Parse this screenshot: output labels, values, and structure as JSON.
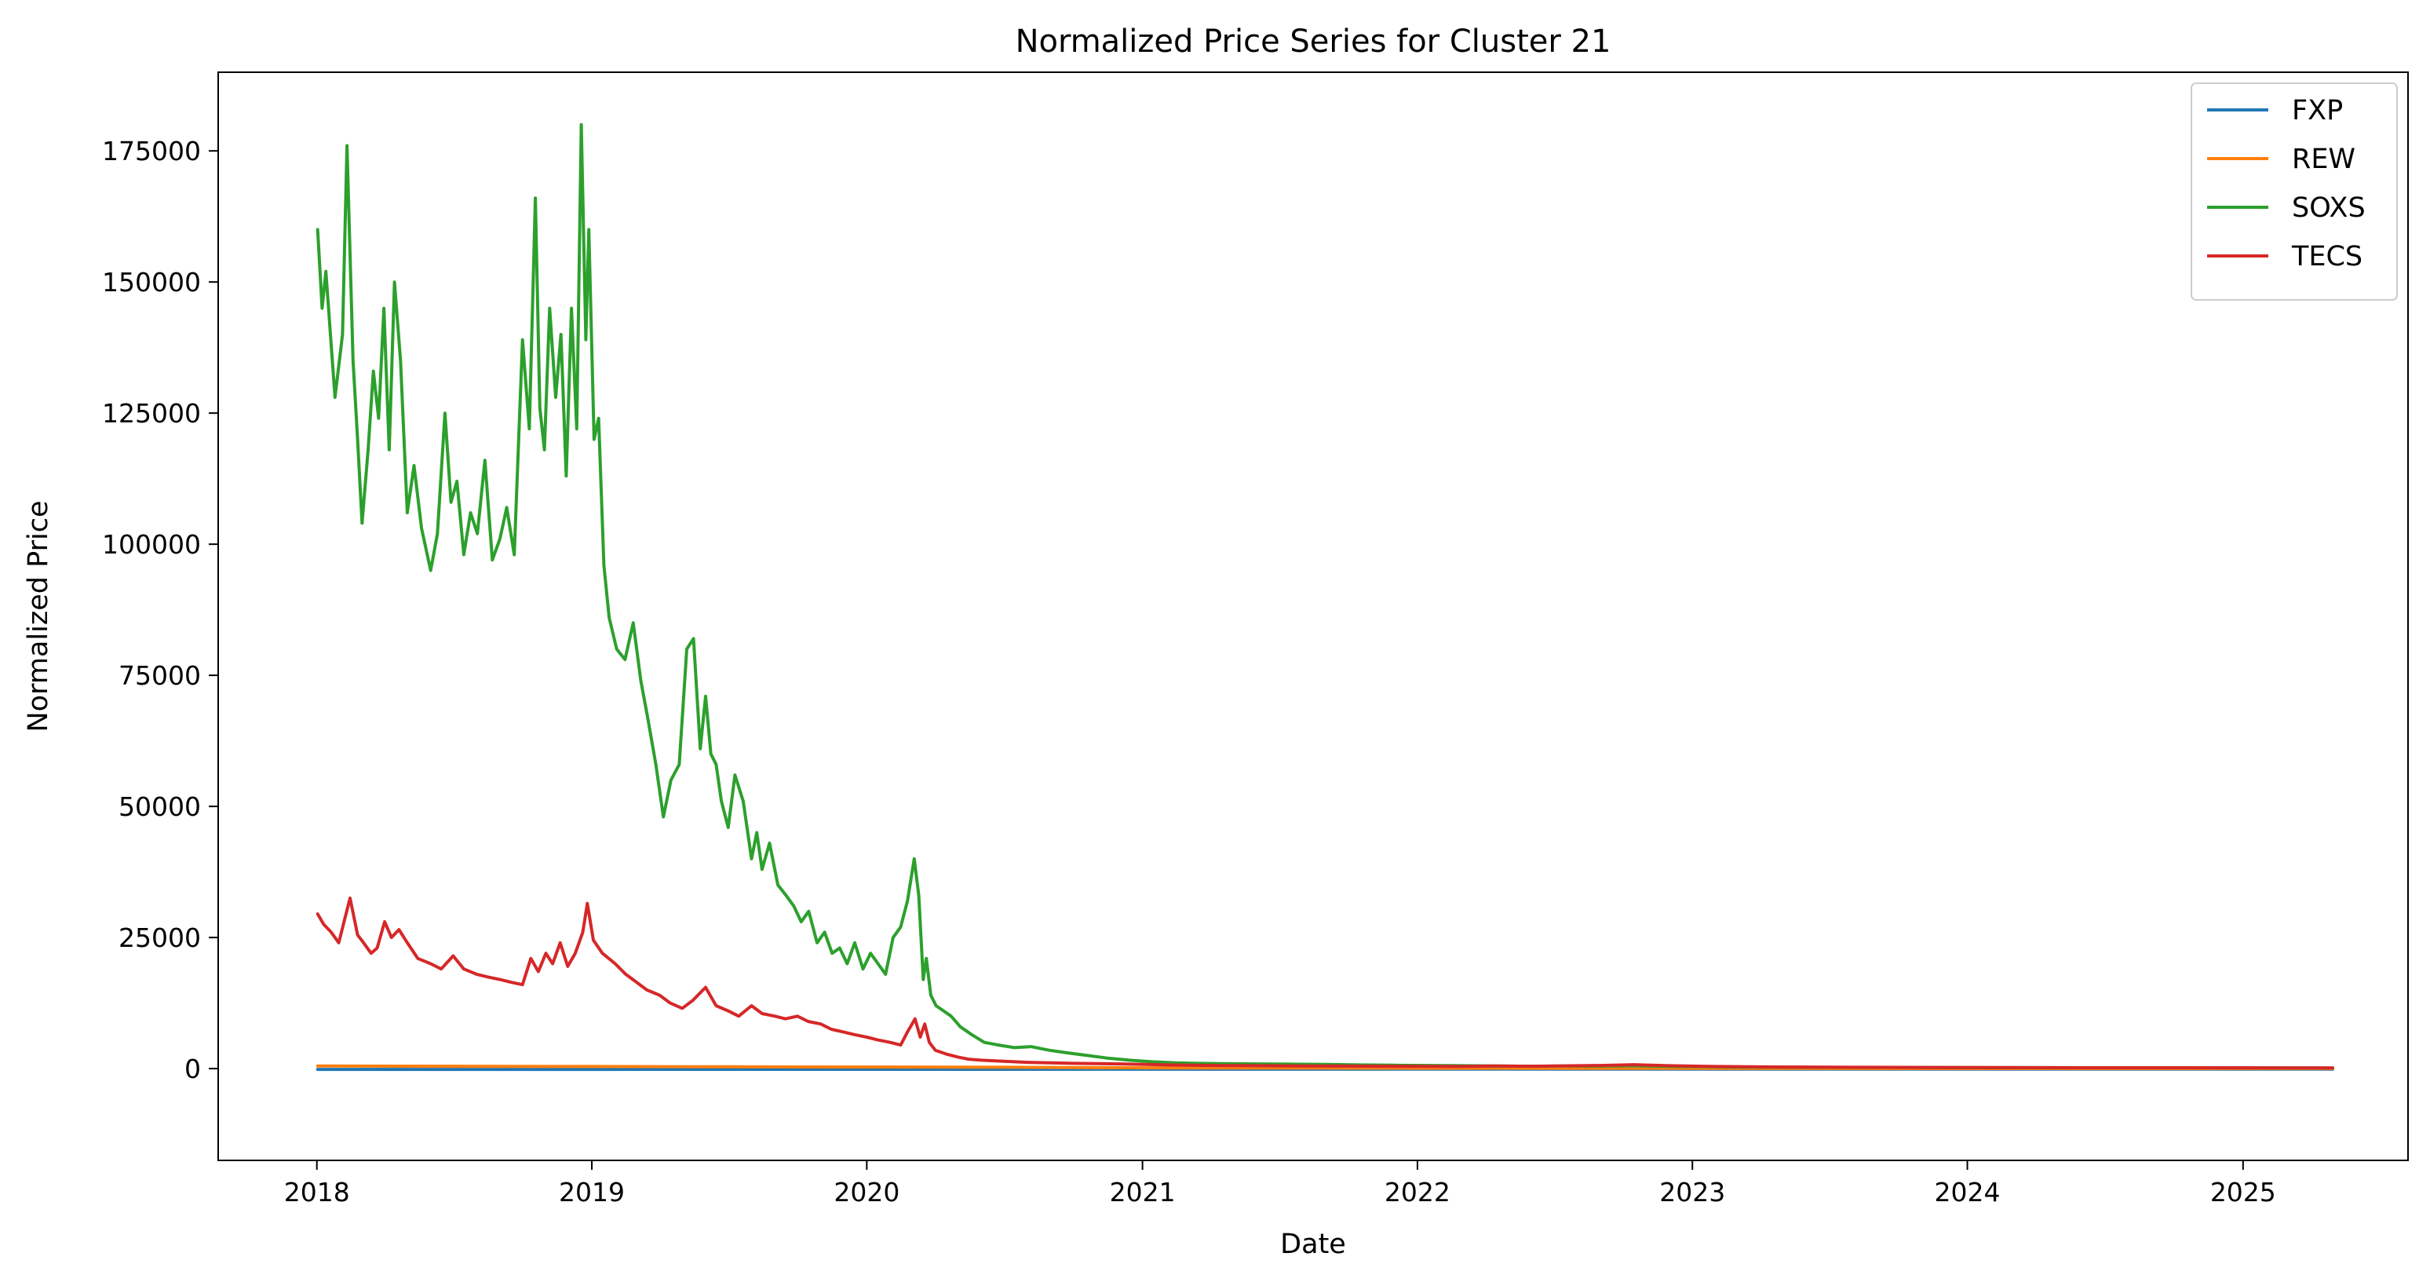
{
  "chart_data": {
    "type": "line",
    "title": "Normalized Price Series for Cluster 21",
    "xlabel": "Date",
    "ylabel": "Normalized Price",
    "xlim": [
      "2017-08-23",
      "2025-08-08"
    ],
    "ylim": [
      -17500,
      190000
    ],
    "x_ticks": [
      "2018",
      "2019",
      "2020",
      "2021",
      "2022",
      "2023",
      "2024",
      "2025"
    ],
    "y_ticks": [
      0,
      25000,
      50000,
      75000,
      100000,
      125000,
      150000,
      175000
    ],
    "grid": false,
    "legend_position": "upper right",
    "series": [
      {
        "name": "FXP",
        "color": "#1f77b4",
        "x": [
          "2018-01-02",
          "2019-01-02",
          "2020-01-02",
          "2021-01-04",
          "2022-01-03",
          "2023-01-03",
          "2024-01-02",
          "2025-04-30"
        ],
        "y": [
          -150,
          -150,
          -130,
          -120,
          -110,
          -110,
          -100,
          -100
        ]
      },
      {
        "name": "REW",
        "color": "#ff7f0e",
        "x": [
          "2018-01-02",
          "2018-07-02",
          "2019-01-02",
          "2019-07-01",
          "2020-01-02",
          "2020-07-01",
          "2021-01-04",
          "2022-01-03",
          "2023-01-03",
          "2024-01-02",
          "2025-04-30"
        ],
        "y": [
          500,
          450,
          400,
          350,
          300,
          250,
          150,
          80,
          40,
          20,
          10
        ]
      },
      {
        "name": "SOXS",
        "color": "#2ca02c",
        "x": [
          "2018-01-02",
          "2018-01-08",
          "2018-01-13",
          "2018-01-25",
          "2018-02-04",
          "2018-02-10",
          "2018-02-18",
          "2018-02-24",
          "2018-03-02",
          "2018-03-10",
          "2018-03-17",
          "2018-03-24",
          "2018-03-31",
          "2018-04-07",
          "2018-04-14",
          "2018-04-22",
          "2018-05-01",
          "2018-05-10",
          "2018-05-20",
          "2018-06-01",
          "2018-06-10",
          "2018-06-20",
          "2018-06-28",
          "2018-07-06",
          "2018-07-15",
          "2018-07-24",
          "2018-08-02",
          "2018-08-12",
          "2018-08-22",
          "2018-09-01",
          "2018-09-10",
          "2018-09-20",
          "2018-10-01",
          "2018-10-10",
          "2018-10-18",
          "2018-10-24",
          "2018-10-30",
          "2018-11-06",
          "2018-11-14",
          "2018-11-21",
          "2018-11-28",
          "2018-12-05",
          "2018-12-12",
          "2018-12-18",
          "2018-12-24",
          "2018-12-28",
          "2019-01-04",
          "2019-01-10",
          "2019-01-17",
          "2019-01-24",
          "2019-02-03",
          "2019-02-14",
          "2019-02-25",
          "2019-03-07",
          "2019-03-16",
          "2019-03-27",
          "2019-04-06",
          "2019-04-16",
          "2019-04-27",
          "2019-05-07",
          "2019-05-16",
          "2019-05-25",
          "2019-06-01",
          "2019-06-08",
          "2019-06-15",
          "2019-06-22",
          "2019-07-01",
          "2019-07-10",
          "2019-07-21",
          "2019-08-01",
          "2019-08-08",
          "2019-08-15",
          "2019-08-25",
          "2019-09-05",
          "2019-09-16",
          "2019-09-26",
          "2019-10-06",
          "2019-10-16",
          "2019-10-27",
          "2019-11-06",
          "2019-11-16",
          "2019-11-26",
          "2019-12-06",
          "2019-12-16",
          "2019-12-27",
          "2020-01-06",
          "2020-01-16",
          "2020-01-26",
          "2020-02-05",
          "2020-02-15",
          "2020-02-24",
          "2020-03-04",
          "2020-03-10",
          "2020-03-16",
          "2020-03-20",
          "2020-03-26",
          "2020-04-02",
          "2020-04-12",
          "2020-04-22",
          "2020-05-04",
          "2020-05-19",
          "2020-06-05",
          "2020-06-24",
          "2020-07-15",
          "2020-08-06",
          "2020-08-30",
          "2020-09-24",
          "2020-10-20",
          "2020-11-15",
          "2020-12-15",
          "2021-01-14",
          "2021-02-14",
          "2021-03-15",
          "2021-04-15",
          "2021-05-31",
          "2021-07-15",
          "2021-09-01",
          "2021-10-15",
          "2021-12-01",
          "2022-01-15",
          "2022-03-01",
          "2022-04-15",
          "2022-06-01",
          "2022-07-15",
          "2022-09-01",
          "2022-10-15",
          "2022-12-01",
          "2023-01-15",
          "2023-03-01",
          "2023-06-01",
          "2023-09-01",
          "2023-12-01",
          "2024-03-01",
          "2024-06-01",
          "2024-09-01",
          "2024-12-01",
          "2025-03-01",
          "2025-04-30"
        ],
        "y": [
          160000,
          145000,
          152000,
          128000,
          140000,
          176000,
          135000,
          120000,
          104000,
          118000,
          133000,
          124000,
          145000,
          118000,
          150000,
          135000,
          106000,
          115000,
          103000,
          95000,
          102000,
          125000,
          108000,
          112000,
          98000,
          106000,
          102000,
          116000,
          97000,
          101000,
          107000,
          98000,
          139000,
          122000,
          166000,
          126000,
          118000,
          145000,
          128000,
          140000,
          113000,
          145000,
          122000,
          180000,
          139000,
          160000,
          120000,
          124000,
          96000,
          86000,
          80000,
          78000,
          85000,
          74000,
          67000,
          58000,
          48000,
          55000,
          58000,
          80000,
          82000,
          61000,
          71000,
          60000,
          58000,
          51000,
          46000,
          56000,
          51000,
          40000,
          45000,
          38000,
          43000,
          35000,
          33000,
          31000,
          28000,
          30000,
          24000,
          26000,
          22000,
          23000,
          20000,
          24000,
          19000,
          22000,
          20000,
          18000,
          25000,
          27000,
          32000,
          40000,
          33000,
          17000,
          21000,
          14000,
          12000,
          11000,
          10000,
          8000,
          6500,
          5000,
          4500,
          4000,
          4200,
          3500,
          3000,
          2500,
          2000,
          1600,
          1300,
          1100,
          1000,
          950,
          900,
          850,
          800,
          700,
          650,
          600,
          550,
          500,
          450,
          500,
          480,
          550,
          420,
          380,
          300,
          250,
          220,
          200,
          180,
          170,
          160,
          150,
          140,
          130
        ]
      },
      {
        "name": "TECS",
        "color": "#d62728",
        "x": [
          "2018-01-02",
          "2018-01-10",
          "2018-01-20",
          "2018-01-30",
          "2018-02-06",
          "2018-02-14",
          "2018-02-24",
          "2018-03-04",
          "2018-03-14",
          "2018-03-22",
          "2018-04-01",
          "2018-04-10",
          "2018-04-20",
          "2018-05-01",
          "2018-05-15",
          "2018-06-01",
          "2018-06-15",
          "2018-07-01",
          "2018-07-15",
          "2018-08-01",
          "2018-08-15",
          "2018-09-01",
          "2018-09-15",
          "2018-10-01",
          "2018-10-12",
          "2018-10-22",
          "2018-11-01",
          "2018-11-10",
          "2018-11-20",
          "2018-11-30",
          "2018-12-10",
          "2018-12-20",
          "2018-12-26",
          "2019-01-03",
          "2019-01-15",
          "2019-02-01",
          "2019-02-15",
          "2019-03-01",
          "2019-03-15",
          "2019-04-01",
          "2019-04-15",
          "2019-05-01",
          "2019-05-15",
          "2019-06-01",
          "2019-06-15",
          "2019-07-01",
          "2019-07-15",
          "2019-08-01",
          "2019-08-15",
          "2019-09-01",
          "2019-09-15",
          "2019-10-01",
          "2019-10-15",
          "2019-11-01",
          "2019-11-15",
          "2019-12-01",
          "2019-12-15",
          "2020-01-01",
          "2020-01-15",
          "2020-02-01",
          "2020-02-15",
          "2020-02-24",
          "2020-03-05",
          "2020-03-12",
          "2020-03-18",
          "2020-03-24",
          "2020-04-01",
          "2020-04-15",
          "2020-05-01",
          "2020-05-15",
          "2020-06-01",
          "2020-07-01",
          "2020-08-01",
          "2020-09-01",
          "2020-10-01",
          "2020-11-01",
          "2020-12-01",
          "2021-01-04",
          "2021-02-01",
          "2021-03-01",
          "2021-04-01",
          "2021-06-01",
          "2021-08-01",
          "2021-10-01",
          "2021-12-01",
          "2022-01-15",
          "2022-03-01",
          "2022-04-15",
          "2022-06-01",
          "2022-07-15",
          "2022-09-01",
          "2022-10-15",
          "2022-12-01",
          "2023-02-01",
          "2023-05-01",
          "2023-08-01",
          "2023-11-01",
          "2024-02-01",
          "2024-05-01",
          "2024-08-01",
          "2024-11-01",
          "2025-02-01",
          "2025-04-30"
        ],
        "y": [
          29500,
          27500,
          26000,
          24000,
          28000,
          32500,
          25500,
          24000,
          22000,
          23000,
          28000,
          25000,
          26500,
          24000,
          21000,
          20000,
          19000,
          21500,
          19000,
          18000,
          17500,
          17000,
          16500,
          16000,
          21000,
          18500,
          22000,
          20000,
          24000,
          19500,
          22000,
          26000,
          31500,
          24500,
          22000,
          20000,
          18000,
          16500,
          15000,
          14000,
          12500,
          11500,
          13000,
          15500,
          12000,
          11000,
          10000,
          12000,
          10500,
          10000,
          9500,
          10000,
          9000,
          8500,
          7500,
          7000,
          6500,
          6000,
          5500,
          5000,
          4500,
          7000,
          9500,
          6000,
          8500,
          5000,
          3500,
          2800,
          2200,
          1800,
          1600,
          1400,
          1200,
          1100,
          1000,
          950,
          900,
          800,
          700,
          650,
          600,
          550,
          500,
          480,
          450,
          420,
          400,
          500,
          450,
          520,
          600,
          750,
          550,
          400,
          300,
          250,
          220,
          200,
          180,
          170,
          160,
          150,
          140
        ]
      }
    ]
  }
}
